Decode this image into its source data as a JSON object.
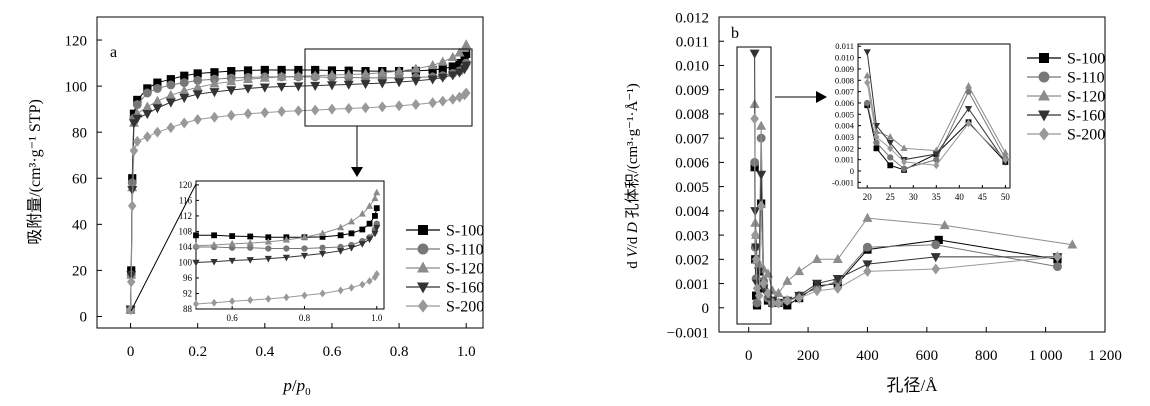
{
  "chart_data": [
    {
      "id": "a",
      "panel_label": "a",
      "type": "line",
      "xlabel_parts": [
        "p",
        "/",
        "p",
        "0"
      ],
      "ylabel": "吸附量/(cm³·g⁻¹ STP)",
      "xlim": [
        -0.1,
        1.05
      ],
      "ylim": [
        -5,
        130
      ],
      "xticks": [
        0,
        0.2,
        0.4,
        0.6,
        0.8,
        1.0
      ],
      "xtick_labels": [
        "0",
        "0.2",
        "0.4",
        "0.6",
        "0.8",
        "1.0"
      ],
      "yticks": [
        0,
        20,
        40,
        60,
        80,
        100,
        120
      ],
      "ytick_labels": [
        "0",
        "20",
        "40",
        "60",
        "80",
        "100",
        "120"
      ],
      "legend_position": "outside-right",
      "series": [
        {
          "name": "S-100",
          "color": "#000000",
          "marker": "square",
          "x": [
            0,
            0.002,
            0.005,
            0.01,
            0.02,
            0.05,
            0.08,
            0.12,
            0.16,
            0.2,
            0.25,
            0.3,
            0.35,
            0.4,
            0.45,
            0.5,
            0.55,
            0.6,
            0.65,
            0.7,
            0.75,
            0.8,
            0.85,
            0.9,
            0.93,
            0.96,
            0.98,
            0.995,
            1.0
          ],
          "y": [
            3,
            20,
            60,
            88,
            94,
            99,
            101.5,
            103,
            104.5,
            105.5,
            106,
            106.5,
            106.8,
            107,
            107,
            107,
            107,
            106.8,
            106.7,
            106.5,
            106.5,
            106.5,
            106.6,
            107,
            107.5,
            108.5,
            110,
            112,
            114
          ]
        },
        {
          "name": "S-110",
          "color": "#777777",
          "marker": "circle",
          "x": [
            0,
            0.002,
            0.005,
            0.01,
            0.02,
            0.05,
            0.08,
            0.12,
            0.16,
            0.2,
            0.25,
            0.3,
            0.35,
            0.4,
            0.45,
            0.5,
            0.55,
            0.6,
            0.65,
            0.7,
            0.75,
            0.8,
            0.85,
            0.9,
            0.93,
            0.96,
            0.98,
            0.995,
            1.0
          ],
          "y": [
            3,
            18,
            58,
            86,
            92,
            97,
            99,
            100.5,
            101.5,
            102.5,
            103,
            103.5,
            103.8,
            104,
            104,
            104,
            104,
            103.8,
            103.8,
            103.6,
            103.6,
            103.6,
            103.8,
            104,
            104.5,
            105.5,
            106.5,
            108.5,
            110
          ]
        },
        {
          "name": "S-120",
          "color": "#8c8c8c",
          "marker": "triangle-up",
          "x": [
            0,
            0.002,
            0.005,
            0.01,
            0.02,
            0.05,
            0.08,
            0.12,
            0.16,
            0.2,
            0.25,
            0.3,
            0.35,
            0.4,
            0.45,
            0.5,
            0.55,
            0.6,
            0.65,
            0.7,
            0.75,
            0.8,
            0.85,
            0.9,
            0.93,
            0.96,
            0.98,
            0.995,
            1.0
          ],
          "y": [
            3,
            18,
            56,
            84,
            88,
            91,
            93.5,
            96,
            98,
            99.5,
            101,
            102,
            103,
            103.5,
            104,
            104.3,
            104.5,
            104.8,
            105,
            105.3,
            105.8,
            106.5,
            107.5,
            109,
            110.5,
            112.5,
            114.5,
            116.5,
            118
          ]
        },
        {
          "name": "S-160",
          "color": "#333333",
          "marker": "triangle-down",
          "x": [
            0,
            0.002,
            0.005,
            0.01,
            0.02,
            0.05,
            0.08,
            0.12,
            0.16,
            0.2,
            0.25,
            0.3,
            0.35,
            0.4,
            0.45,
            0.5,
            0.55,
            0.6,
            0.65,
            0.7,
            0.75,
            0.8,
            0.85,
            0.9,
            0.93,
            0.96,
            0.98,
            0.995,
            1.0
          ],
          "y": [
            3,
            18,
            55,
            84,
            86,
            88,
            90.5,
            93,
            95,
            96.5,
            97.5,
            98.3,
            99,
            99.5,
            99.8,
            100,
            100.2,
            100.5,
            100.7,
            101,
            101.3,
            101.8,
            102.3,
            103,
            103.8,
            104.8,
            106,
            107.5,
            109
          ]
        },
        {
          "name": "S-200",
          "color": "#999999",
          "marker": "diamond",
          "x": [
            0,
            0.002,
            0.005,
            0.01,
            0.02,
            0.05,
            0.08,
            0.12,
            0.16,
            0.2,
            0.25,
            0.3,
            0.35,
            0.4,
            0.45,
            0.5,
            0.55,
            0.6,
            0.65,
            0.7,
            0.75,
            0.8,
            0.85,
            0.9,
            0.93,
            0.96,
            0.98,
            0.995,
            1.0
          ],
          "y": [
            3,
            15,
            48,
            72,
            76,
            78,
            80,
            82,
            84,
            85.5,
            86.5,
            87.3,
            88,
            88.5,
            89,
            89.3,
            89.6,
            90,
            90.3,
            90.6,
            91,
            91.5,
            92,
            92.8,
            93.5,
            94.3,
            95.2,
            96.2,
            97
          ]
        }
      ],
      "inset": {
        "xlim": [
          0.5,
          1.02
        ],
        "ylim": [
          88,
          121
        ],
        "xticks": [
          0.6,
          0.8,
          1.0
        ],
        "xtick_labels": [
          "0.6",
          "0.8",
          "1.0"
        ],
        "yticks": [
          88,
          92,
          96,
          100,
          104,
          108,
          112,
          116,
          120
        ],
        "ytick_labels": [
          "88",
          "92",
          "96",
          "100",
          "104",
          "108",
          "112",
          "116",
          "120"
        ]
      }
    },
    {
      "id": "b",
      "panel_label": "b",
      "type": "line",
      "xlabel": "孔径/Å",
      "ylabel_parts": [
        "d ",
        "V",
        "/d ",
        "D",
        " 孔体积/(cm³·g⁻¹·Å⁻¹)"
      ],
      "xlim": [
        -100,
        1200
      ],
      "ylim": [
        -0.001,
        0.012
      ],
      "xticks": [
        0,
        200,
        400,
        600,
        800,
        1000,
        1200
      ],
      "xtick_labels": [
        "0",
        "200",
        "400",
        "600",
        "800",
        "1 000",
        "1 200"
      ],
      "yticks": [
        -0.001,
        0,
        0.001,
        0.002,
        0.003,
        0.004,
        0.005,
        0.006,
        0.007,
        0.008,
        0.009,
        0.01,
        0.011,
        0.012
      ],
      "ytick_labels": [
        "−0.001",
        "0",
        "0.001",
        "0.002",
        "0.003",
        "0.004",
        "0.005",
        "0.006",
        "0.007",
        "0.008",
        "0.009",
        "0.010",
        "0.011",
        "0.012"
      ],
      "legend_position": "top-right",
      "series": [
        {
          "name": "S-100",
          "color": "#000000",
          "marker": "square",
          "x": [
            20,
            22,
            25,
            28,
            35,
            42,
            50,
            65,
            80,
            100,
            130,
            170,
            230,
            300,
            400,
            640,
            1040
          ],
          "y": [
            0.0058,
            0.002,
            0.0005,
            0.0001,
            0.0015,
            0.0043,
            0.0008,
            0.0003,
            0.0002,
            0.0002,
            0.0001,
            0.0004,
            0.0009,
            0.001,
            0.0024,
            0.0028,
            0.002
          ]
        },
        {
          "name": "S-110",
          "color": "#777777",
          "marker": "circle",
          "x": [
            20,
            22,
            25,
            28,
            35,
            42,
            50,
            65,
            80,
            100,
            130,
            170,
            230,
            300,
            400,
            630,
            1040
          ],
          "y": [
            0.006,
            0.0025,
            0.0012,
            0.0002,
            0.001,
            0.007,
            0.0011,
            0.0004,
            0.0002,
            0.0002,
            0.0003,
            0.0005,
            0.0008,
            0.0011,
            0.0025,
            0.0026,
            0.0017
          ]
        },
        {
          "name": "S-120",
          "color": "#8c8c8c",
          "marker": "triangle-up",
          "x": [
            20,
            22,
            25,
            28,
            35,
            42,
            50,
            65,
            80,
            100,
            130,
            170,
            230,
            300,
            400,
            660,
            1090
          ],
          "y": [
            0.0084,
            0.0035,
            0.003,
            0.002,
            0.0018,
            0.0075,
            0.0016,
            0.0014,
            0.0007,
            0.0006,
            0.0011,
            0.0015,
            0.002,
            0.002,
            0.0037,
            0.0034,
            0.0026
          ]
        },
        {
          "name": "S-160",
          "color": "#333333",
          "marker": "triangle-down",
          "x": [
            20,
            22,
            25,
            28,
            35,
            42,
            50,
            65,
            80,
            100,
            130,
            170,
            230,
            300,
            400,
            630,
            1040
          ],
          "y": [
            0.0105,
            0.004,
            0.0025,
            0.001,
            0.0015,
            0.0055,
            0.0008,
            0.0005,
            0.0003,
            0.0002,
            0.0003,
            0.0005,
            0.001,
            0.0012,
            0.0018,
            0.0021,
            0.0021
          ]
        },
        {
          "name": "S-200",
          "color": "#999999",
          "marker": "diamond",
          "x": [
            20,
            22,
            25,
            28,
            35,
            42,
            50,
            65,
            80,
            100,
            130,
            170,
            230,
            300,
            400,
            630,
            1040
          ],
          "y": [
            0.0078,
            0.003,
            0.002,
            0.0008,
            0.0005,
            0.0042,
            0.001,
            0.0006,
            0.0002,
            0.0002,
            0.0003,
            0.0004,
            0.0007,
            0.0008,
            0.0015,
            0.0016,
            0.0021
          ]
        }
      ],
      "inset": {
        "xlim": [
          18,
          51
        ],
        "ylim": [
          -0.0015,
          0.0112
        ],
        "xticks": [
          20,
          25,
          30,
          35,
          40,
          45,
          50
        ],
        "xtick_labels": [
          "20",
          "25",
          "30",
          "35",
          "40",
          "45",
          "50"
        ],
        "yticks": [
          -0.001,
          0,
          0.001,
          0.002,
          0.003,
          0.004,
          0.005,
          0.006,
          0.007,
          0.008,
          0.009,
          0.01,
          0.011
        ],
        "ytick_labels": [
          "-0.001",
          "0",
          "0.001",
          "0.002",
          "0.003",
          "0.004",
          "0.005",
          "0.006",
          "0.007",
          "0.008",
          "0.009",
          "0.010",
          "0.011"
        ]
      }
    }
  ]
}
